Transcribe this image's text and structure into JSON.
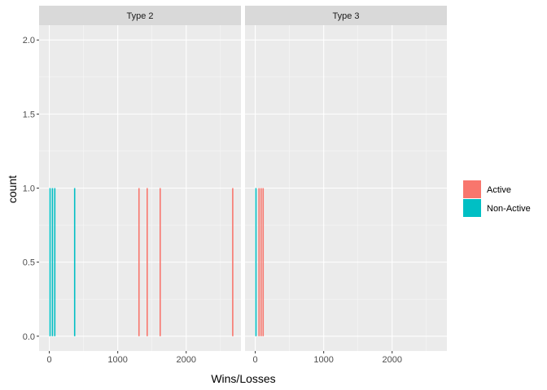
{
  "chart_data": {
    "type": "bar",
    "subtype": "faceted-histogram",
    "xlabel": "Wins/Losses",
    "ylabel": "count",
    "xlim": [
      -150,
      2800
    ],
    "ylim": [
      -0.1,
      2.1
    ],
    "x_ticks": [
      0,
      1000,
      2000
    ],
    "y_ticks": [
      0.0,
      0.5,
      1.0,
      1.5,
      2.0
    ],
    "x_tick_labels": [
      "0",
      "1000",
      "2000"
    ],
    "y_tick_labels": [
      "0.0",
      "0.5",
      "1.0",
      "1.5",
      "2.0"
    ],
    "grid": true,
    "legend_position": "right",
    "legend": [
      {
        "label": "Active",
        "color": "#F8766D"
      },
      {
        "label": "Non-Active",
        "color": "#00BFC4"
      }
    ],
    "facets": [
      {
        "label": "Type 2",
        "bars": [
          {
            "x": 10,
            "count": 1,
            "group": "Non-Active"
          },
          {
            "x": 45,
            "count": 1,
            "group": "Non-Active"
          },
          {
            "x": 80,
            "count": 1,
            "group": "Non-Active"
          },
          {
            "x": 370,
            "count": 1,
            "group": "Non-Active"
          },
          {
            "x": 1310,
            "count": 1,
            "group": "Active"
          },
          {
            "x": 1430,
            "count": 1,
            "group": "Active"
          },
          {
            "x": 1620,
            "count": 1,
            "group": "Active"
          },
          {
            "x": 2680,
            "count": 1,
            "group": "Active"
          }
        ]
      },
      {
        "label": "Type 3",
        "bars": [
          {
            "x": 10,
            "count": 1,
            "group": "Non-Active"
          },
          {
            "x": 55,
            "count": 1,
            "group": "Active"
          },
          {
            "x": 85,
            "count": 1,
            "group": "Active"
          },
          {
            "x": 115,
            "count": 1,
            "group": "Active"
          }
        ]
      }
    ]
  }
}
